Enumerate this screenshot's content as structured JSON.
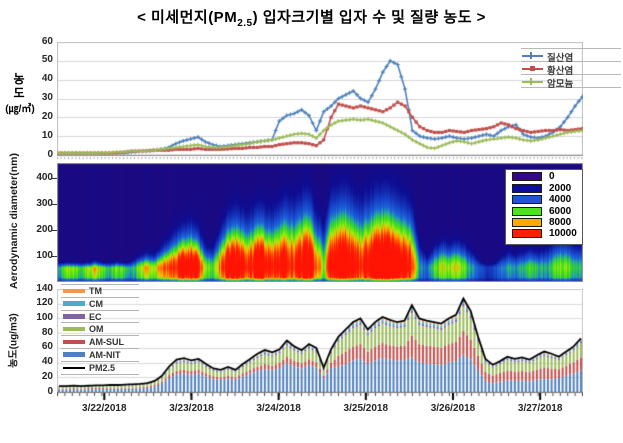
{
  "title": {
    "pre": "< 미세먼지(PM",
    "sub": "2.5",
    "post": ") 입자크기별 입자 수 및 질량 농도 >"
  },
  "x_axis": {
    "dates": [
      "3/22/2018",
      "3/23/2018",
      "3/24/2018",
      "3/25/2018",
      "3/26/2018",
      "3/27/2018"
    ]
  },
  "chart_data": [
    {
      "type": "line",
      "ylabel": {
        "char1": "농",
        "char2": "도",
        "unit": "(㎍/㎥)"
      },
      "ylim": [
        0,
        60
      ],
      "yticks": [
        0,
        10,
        20,
        30,
        40,
        50,
        60
      ],
      "time_step_hours": 2,
      "legend_position": "right",
      "series": [
        {
          "name": "질산염",
          "color": "#4f81bd",
          "marker": "plus",
          "values": [
            1,
            1,
            1,
            1,
            1,
            1,
            1,
            1,
            1,
            1,
            1.5,
            2,
            2,
            2.5,
            3,
            4,
            6,
            7.5,
            8.5,
            9.5,
            7,
            5.5,
            4.5,
            5,
            5.5,
            6,
            6.5,
            7,
            7.5,
            8,
            18,
            21,
            22,
            24,
            21,
            13,
            23,
            26,
            30,
            32,
            34,
            30,
            28,
            35,
            44,
            50,
            48,
            35,
            13,
            10,
            9,
            8.5,
            9,
            10,
            9,
            8.5,
            9,
            10,
            11,
            10,
            13,
            15,
            16,
            11,
            9.5,
            9,
            10,
            12,
            15,
            20,
            26,
            31
          ]
        },
        {
          "name": "황산염",
          "color": "#c0504d",
          "marker": "square",
          "values": [
            1,
            1,
            1,
            1,
            1,
            1,
            1,
            1,
            1.2,
            1.5,
            2,
            2,
            2.2,
            2.5,
            2.5,
            2.5,
            3,
            3,
            3,
            3.5,
            3,
            3,
            3,
            3.2,
            3.5,
            3.5,
            4,
            4,
            4.5,
            4.5,
            5.5,
            6,
            6.5,
            6.5,
            6,
            5,
            8,
            20,
            27,
            26,
            25,
            26,
            25,
            24,
            23,
            25,
            28,
            26,
            20,
            15,
            13,
            12,
            12,
            13,
            12.5,
            12,
            13,
            13.5,
            14,
            15,
            17,
            16,
            14,
            13,
            12,
            12.5,
            13,
            13,
            13.5,
            13,
            13.5,
            14
          ]
        },
        {
          "name": "암모늄",
          "color": "#9bbb59",
          "marker": "plus",
          "values": [
            1,
            1,
            1,
            1,
            1,
            1,
            1.2,
            1.2,
            1.5,
            1.5,
            2,
            2,
            2.2,
            2.5,
            3,
            3.5,
            4,
            4.5,
            5,
            5.5,
            4.5,
            4,
            4,
            4.5,
            5,
            5.5,
            6,
            7,
            7.5,
            8,
            9,
            10,
            11,
            11.5,
            11,
            9,
            13,
            16,
            18,
            18.5,
            19,
            18.5,
            19,
            18,
            17,
            15,
            13,
            11,
            8,
            6,
            4,
            3.5,
            5,
            6.5,
            7.5,
            7,
            6,
            7,
            8,
            8.5,
            9,
            9.5,
            9,
            8,
            7.5,
            8,
            9,
            10,
            11,
            12,
            12.5,
            13
          ]
        }
      ]
    },
    {
      "type": "heatmap",
      "ylabel": "Aerodynamic diameter(nm)",
      "ylim": [
        0,
        460
      ],
      "yticks": [
        100,
        200,
        300,
        400
      ],
      "colorbar": {
        "values": [
          0,
          2000,
          4000,
          6000,
          8000,
          10000
        ],
        "colors": [
          "#35078a",
          "#0d0d9c",
          "#1e55d2",
          "#4ce41c",
          "#ffa800",
          "#ff1e05"
        ]
      },
      "surface_mode_nm": 50,
      "surface_peak_per_step": [
        4000,
        5500,
        6500,
        5000,
        6000,
        7000,
        6000,
        4500,
        6500,
        5000,
        4000,
        6000,
        7000,
        6500,
        7500,
        8000,
        9000,
        10500,
        11000,
        10000,
        6000,
        5000,
        8000,
        10500,
        11000,
        10500,
        9000,
        11000,
        10500,
        9000,
        9500,
        10000,
        9000,
        10500,
        11000,
        8000,
        6000,
        10000,
        11000,
        11500,
        10000,
        9000,
        10500,
        11500,
        12000,
        11500,
        11000,
        10500,
        9000,
        4000,
        3000,
        5500,
        6500,
        6000,
        6500,
        5500,
        4000,
        3000,
        2000,
        2200,
        3500,
        4500,
        4000,
        4500,
        5000,
        4500,
        4000,
        5000,
        6000,
        5500,
        5000,
        4500
      ],
      "plume_top_nm_per_step": [
        40,
        45,
        55,
        55,
        70,
        80,
        75,
        60,
        80,
        70,
        80,
        100,
        110,
        105,
        130,
        160,
        190,
        210,
        220,
        200,
        140,
        130,
        200,
        250,
        270,
        260,
        250,
        280,
        270,
        260,
        290,
        310,
        300,
        320,
        330,
        260,
        220,
        330,
        340,
        345,
        320,
        300,
        320,
        330,
        340,
        335,
        320,
        310,
        280,
        150,
        100,
        140,
        160,
        150,
        160,
        150,
        120,
        90,
        60,
        70,
        100,
        120,
        110,
        120,
        130,
        120,
        130,
        150,
        170,
        160,
        150,
        140
      ]
    },
    {
      "type": "bar",
      "stacked": true,
      "ylabel": "농도(ug/m3)",
      "ylim": [
        0,
        140
      ],
      "yticks": [
        0,
        20,
        40,
        60,
        80,
        100,
        120,
        140
      ],
      "stack_order_bottom_to_top": [
        "AM-NIT",
        "AM-SUL",
        "OM",
        "EC",
        "CM",
        "TM"
      ],
      "series": [
        {
          "name": "TM",
          "color": "#f79646",
          "values": [
            0.3,
            0.3,
            0.3,
            0.3,
            0.3,
            0.3,
            0.3,
            0.3,
            0.3,
            0.3,
            0.3,
            0.3,
            0.5,
            0.5,
            0.5,
            0.5,
            1,
            1,
            1,
            1,
            1,
            0.5,
            0.5,
            0.5,
            0.5,
            1,
            1,
            1,
            1,
            1,
            1,
            1.5,
            1,
            1,
            1.5,
            1,
            0.5,
            1,
            1.5,
            1.5,
            2,
            2,
            1.5,
            2,
            2,
            2,
            2,
            2,
            2.5,
            2,
            2,
            2,
            2,
            2,
            2,
            2.5,
            2,
            1.5,
            1,
            1,
            1,
            1,
            1,
            1,
            1,
            1,
            1,
            1,
            1,
            1,
            1,
            1.5
          ]
        },
        {
          "name": "CM",
          "color": "#4bacc6",
          "values": [
            0.5,
            0.5,
            0.5,
            0.5,
            0.5,
            0.5,
            0.5,
            0.5,
            0.5,
            0.5,
            0.5,
            0.5,
            0.5,
            0.5,
            0.5,
            1,
            1.5,
            1.5,
            1.5,
            1.5,
            1,
            1,
            1,
            1,
            1,
            1,
            1.5,
            1.5,
            1.5,
            1.5,
            1.5,
            2,
            2,
            1.5,
            2,
            2,
            1,
            1.5,
            2,
            2.5,
            3,
            3,
            2.5,
            3,
            3,
            3,
            3,
            3,
            3.5,
            3,
            3,
            3,
            3,
            3,
            3,
            4,
            3.5,
            2.5,
            1.5,
            1,
            1.5,
            1.5,
            1.5,
            1.5,
            1.5,
            1.5,
            1.5,
            1.5,
            1.5,
            1.5,
            2,
            2
          ]
        },
        {
          "name": "EC",
          "color": "#8064a2",
          "values": [
            0.5,
            0.5,
            0.5,
            0.5,
            0.5,
            0.5,
            0.5,
            0.5,
            0.5,
            0.5,
            0.5,
            0.5,
            0.5,
            0.5,
            1,
            1.5,
            2,
            2,
            2,
            2,
            1.5,
            1.5,
            1,
            1.5,
            1,
            1.5,
            2,
            2,
            2.5,
            2,
            2.5,
            3,
            2.5,
            2.5,
            2.5,
            2.5,
            1.5,
            2.5,
            2.5,
            2.5,
            3,
            3,
            2.5,
            3,
            3,
            3,
            3,
            3,
            3.5,
            3,
            3,
            3,
            3,
            3,
            3,
            4,
            3.5,
            2.5,
            2,
            1.5,
            1.5,
            2,
            2,
            2,
            2,
            2,
            2,
            2,
            1.5,
            1.5,
            2,
            2
          ]
        },
        {
          "name": "OM",
          "color": "#9bbb59",
          "values": [
            2,
            2,
            2,
            2,
            2,
            2.5,
            2.5,
            2.5,
            2.5,
            2.5,
            2.5,
            3,
            3,
            4,
            5,
            7.5,
            9.5,
            10,
            9.5,
            10,
            8.5,
            7,
            6.5,
            7.5,
            6.5,
            8.5,
            10,
            11.5,
            12.5,
            12,
            13,
            15.5,
            13.5,
            12.5,
            14.5,
            13,
            7,
            13,
            19.5,
            22,
            24.5,
            26,
            22,
            24.5,
            26.5,
            25.5,
            24.5,
            25,
            30.5,
            26,
            25,
            24.5,
            24,
            26,
            27,
            33,
            28.5,
            19.5,
            12.5,
            10.5,
            12,
            13.5,
            12.5,
            13,
            12.5,
            14,
            15.5,
            14.5,
            12.5,
            14,
            16,
            19
          ]
        },
        {
          "name": "AM-SUL",
          "color": "#c0504d",
          "values": [
            1,
            1,
            1.5,
            1,
            1.5,
            1.5,
            1.5,
            1.5,
            1.5,
            1.5,
            1.5,
            1.5,
            2,
            2.5,
            2.5,
            4,
            5,
            5.5,
            5,
            5.5,
            4.5,
            4,
            3.5,
            4,
            3.5,
            4.5,
            5.5,
            6,
            7,
            6.5,
            7,
            8.5,
            7.5,
            7,
            8,
            7,
            4,
            7,
            15,
            17,
            19,
            20,
            17,
            19,
            20.5,
            19.5,
            19,
            19.5,
            29.5,
            25,
            24,
            24,
            23,
            25,
            26,
            32,
            27.5,
            19,
            12.5,
            10.5,
            12,
            13.5,
            12.5,
            13,
            12.5,
            14,
            15.5,
            14.5,
            12,
            14,
            15.5,
            18
          ]
        },
        {
          "name": "AM-NIT",
          "color": "#4f81bd",
          "values": [
            3.5,
            3.5,
            4,
            3.5,
            4,
            4,
            4,
            4.5,
            4.5,
            4.5,
            4.5,
            5,
            5.5,
            7,
            12,
            19,
            24,
            25,
            23.5,
            25,
            21,
            17.5,
            16.5,
            18.5,
            16.5,
            21,
            25,
            28.5,
            31,
            29.5,
            32.5,
            39,
            35,
            32,
            36.5,
            33.5,
            18.5,
            32.5,
            34,
            38,
            43,
            45,
            38,
            43,
            46,
            44,
            43,
            43.5,
            47,
            40,
            39,
            38,
            37,
            40,
            42,
            51,
            44,
            30,
            15,
            12,
            14,
            16,
            15,
            15.5,
            14.5,
            16.5,
            18,
            17,
            19,
            22,
            25,
            29
          ]
        }
      ],
      "line_series": {
        "name": "PM2.5",
        "color": "#000000",
        "values": [
          8,
          8,
          8.5,
          8,
          8.5,
          9,
          9,
          9.5,
          9.5,
          10,
          10.5,
          11,
          12,
          15,
          22,
          35,
          44,
          46,
          43,
          45,
          38,
          32,
          30,
          34,
          30,
          38,
          45,
          52,
          57,
          54,
          58,
          70,
          62,
          57,
          65,
          60,
          33,
          58,
          75,
          85,
          95,
          100,
          85,
          95,
          102,
          98,
          95,
          97,
          118,
          100,
          97,
          95,
          93,
          100,
          105,
          127,
          110,
          75,
          45,
          37,
          42,
          48,
          45,
          47,
          44,
          50,
          55,
          52,
          48,
          55,
          62,
          73
        ]
      }
    }
  ]
}
